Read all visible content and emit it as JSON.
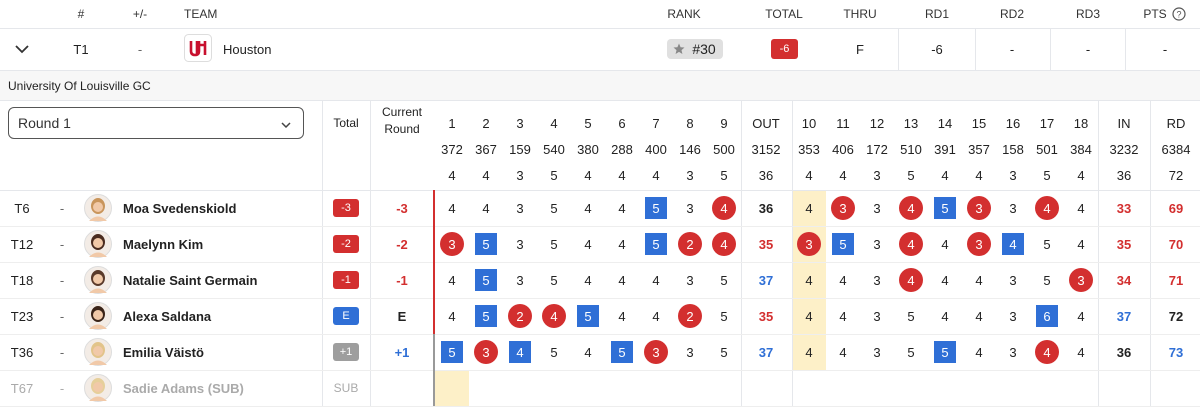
{
  "header": {
    "columns": [
      "#",
      "+/-",
      "TEAM",
      "RANK",
      "TOTAL",
      "THRU",
      "RD1",
      "RD2",
      "RD3",
      "PTS"
    ]
  },
  "team": {
    "position": "T1",
    "change": "-",
    "name": "Houston",
    "rank": "#30",
    "total": "-6",
    "thru": "F",
    "rounds": [
      "-6",
      "-",
      "-"
    ],
    "points": "-"
  },
  "course": "University Of Louisville GC",
  "round_select": "Round 1",
  "scorecard": {
    "total_label": "Total",
    "current_label": "Current Round",
    "holes": [
      {
        "number": 1,
        "yards": 372,
        "par": 4
      },
      {
        "number": 2,
        "yards": 367,
        "par": 4
      },
      {
        "number": 3,
        "yards": 159,
        "par": 3
      },
      {
        "number": 4,
        "yards": 540,
        "par": 5
      },
      {
        "number": 5,
        "yards": 380,
        "par": 4
      },
      {
        "number": 6,
        "yards": 288,
        "par": 4
      },
      {
        "number": 7,
        "yards": 400,
        "par": 4
      },
      {
        "number": 8,
        "yards": 146,
        "par": 3
      },
      {
        "number": 9,
        "yards": 500,
        "par": 5
      },
      {
        "number": 10,
        "yards": 353,
        "par": 4
      },
      {
        "number": 11,
        "yards": 406,
        "par": 4
      },
      {
        "number": 12,
        "yards": 172,
        "par": 3
      },
      {
        "number": 13,
        "yards": 510,
        "par": 5
      },
      {
        "number": 14,
        "yards": 391,
        "par": 4
      },
      {
        "number": 15,
        "yards": 357,
        "par": 4
      },
      {
        "number": 16,
        "yards": 158,
        "par": 3
      },
      {
        "number": 17,
        "yards": 501,
        "par": 5
      },
      {
        "number": 18,
        "yards": 384,
        "par": 4
      }
    ],
    "out": {
      "label": "OUT",
      "yards": 3152,
      "par": 36
    },
    "in": {
      "label": "IN",
      "yards": 3232,
      "par": 36
    },
    "rd": {
      "label": "RD",
      "yards": 6384,
      "par": 72
    },
    "players": [
      {
        "position": "T6",
        "change": "-",
        "name": "Moa Svedenskiold",
        "total": "-3",
        "current": "-3",
        "scores": [
          4,
          4,
          3,
          5,
          4,
          4,
          5,
          3,
          4,
          4,
          3,
          3,
          4,
          5,
          3,
          3,
          4,
          4
        ],
        "out": 36,
        "in": 33,
        "rd": 69
      },
      {
        "position": "T12",
        "change": "-",
        "name": "Maelynn Kim",
        "total": "-2",
        "current": "-2",
        "scores": [
          3,
          5,
          3,
          5,
          4,
          4,
          5,
          2,
          4,
          3,
          5,
          3,
          4,
          4,
          3,
          4,
          5,
          4
        ],
        "out": 35,
        "in": 35,
        "rd": 70
      },
      {
        "position": "T18",
        "change": "-",
        "name": "Natalie Saint Germain",
        "total": "-1",
        "current": "-1",
        "scores": [
          4,
          5,
          3,
          5,
          4,
          4,
          4,
          3,
          5,
          4,
          4,
          3,
          4,
          4,
          4,
          3,
          5,
          3
        ],
        "out": 37,
        "in": 34,
        "rd": 71
      },
      {
        "position": "T23",
        "change": "-",
        "name": "Alexa Saldana",
        "total": "E",
        "current": "E",
        "scores": [
          4,
          5,
          2,
          4,
          5,
          4,
          4,
          2,
          5,
          4,
          4,
          3,
          5,
          4,
          4,
          3,
          6,
          4
        ],
        "out": 35,
        "in": 37,
        "rd": 72
      },
      {
        "position": "T36",
        "change": "-",
        "name": "Emilia Väistö",
        "total": "+1",
        "current": "+1",
        "scores": [
          5,
          3,
          4,
          5,
          4,
          5,
          3,
          3,
          5,
          4,
          4,
          3,
          5,
          5,
          4,
          3,
          4,
          4
        ],
        "out": 37,
        "in": 36,
        "rd": 73
      },
      {
        "position": "T67",
        "change": "-",
        "name": "Sadie Adams (SUB)",
        "total": "SUB"
      }
    ]
  }
}
